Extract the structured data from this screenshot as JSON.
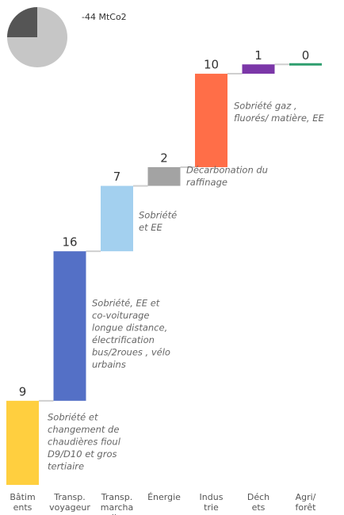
{
  "chart_data": {
    "type": "waterfall",
    "title": "-44 MtCo2",
    "pie": {
      "values": [
        25,
        75
      ],
      "colors": [
        "#555555",
        "#c6c6c6"
      ]
    },
    "categories": [
      [
        "Bâtim",
        "ents"
      ],
      [
        "Transp.",
        "voyageur"
      ],
      [
        "Transp.",
        "marcha",
        "ndises"
      ],
      [
        "Énergie"
      ],
      [
        "Indus",
        "trie"
      ],
      [
        "Déch",
        "ets"
      ],
      [
        "Agri/",
        "forêt"
      ]
    ],
    "values": [
      9,
      16,
      7,
      2,
      10,
      1,
      0
    ],
    "colors": [
      "#ffcf3f",
      "#5470c6",
      "#a3d0ef",
      "#a3a3a3",
      "#ff6e48",
      "#7b37a8",
      "#2e9e6e"
    ],
    "ylim": [
      0,
      45.7
    ],
    "annotations": [
      [
        "Sobriété et",
        "changement de",
        "chaudières fioul",
        "D9/D10 et gros",
        "tertiaire"
      ],
      [
        "Sobriété, EE et",
        "co-voiturage",
        "longue distance,",
        "électrification",
        "bus/2roues , vélo",
        "urbains"
      ],
      [
        "Sobriété",
        "et EE"
      ],
      [
        "Décarbonation du",
        "raffinage"
      ],
      [
        "Sobriété gaz ,",
        "fluorés/ matière, EE"
      ]
    ]
  }
}
